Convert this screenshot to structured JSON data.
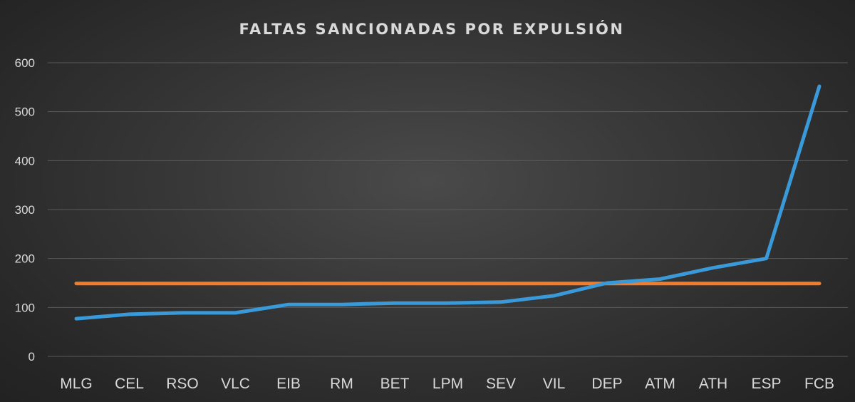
{
  "chart_data": {
    "type": "line",
    "title": "FALTAS SANCIONADAS POR EXPULSIÓN",
    "xlabel": "",
    "ylabel": "",
    "ylim": [
      0,
      600
    ],
    "yticks": [
      0,
      100,
      200,
      300,
      400,
      500,
      600
    ],
    "grid": true,
    "legend": "none",
    "categories": [
      "MLG",
      "CEL",
      "RSO",
      "VLC",
      "EIB",
      "RM",
      "BET",
      "LPM",
      "SEV",
      "VIL",
      "DEP",
      "ATM",
      "ATH",
      "ESP",
      "FCB"
    ],
    "series": [
      {
        "color": "#3a9ad9",
        "values": [
          77,
          86,
          89,
          89,
          106,
          106,
          109,
          109,
          111,
          124,
          150,
          158,
          181,
          200,
          552
        ]
      },
      {
        "color": "#f07c2c",
        "values": [
          149,
          149,
          149,
          149,
          149,
          149,
          149,
          149,
          149,
          149,
          149,
          149,
          149,
          149,
          149
        ]
      }
    ]
  }
}
